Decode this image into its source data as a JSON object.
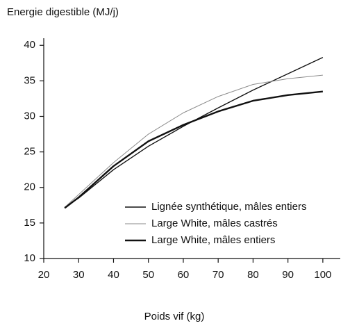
{
  "chart_data": {
    "type": "line",
    "ylabel": "Energie digestible (MJ/j)",
    "xlabel": "Poids vif (kg)",
    "x": [
      26,
      30,
      40,
      50,
      60,
      70,
      80,
      90,
      100
    ],
    "series": [
      {
        "name": "Lignée synthétique, mâles entiers",
        "color": "#111111",
        "values": [
          17.2,
          18.5,
          22.5,
          25.8,
          28.6,
          31.2,
          33.7,
          36.0,
          38.3
        ]
      },
      {
        "name": "Large White, mâles castrés",
        "color": "#8a8a8a",
        "values": [
          17.2,
          19.0,
          23.5,
          27.5,
          30.5,
          32.8,
          34.5,
          35.3,
          35.8
        ]
      },
      {
        "name": "Large White, mâles entiers",
        "color": "#111111",
        "values": [
          17.1,
          18.6,
          23.0,
          26.5,
          28.8,
          30.7,
          32.2,
          33.0,
          33.5
        ]
      }
    ],
    "xlim": [
      20,
      105
    ],
    "xticks": [
      20,
      30,
      40,
      50,
      60,
      70,
      80,
      90,
      100
    ],
    "ylim": [
      10,
      41
    ],
    "yticks": [
      10,
      15,
      20,
      25,
      30,
      35,
      40
    ],
    "grid": false,
    "legend": "lower right"
  }
}
